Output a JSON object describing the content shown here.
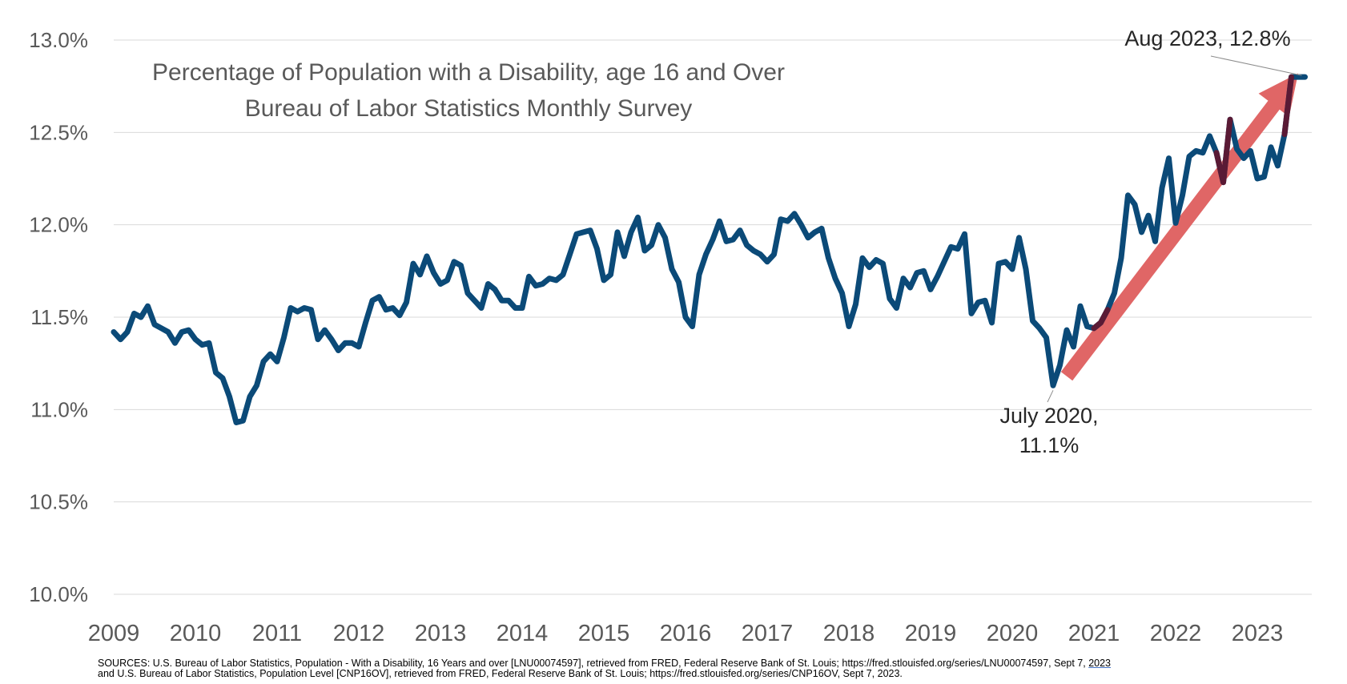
{
  "chart_data": {
    "type": "line",
    "title": "Percentage of Population with a Disability, age 16 and Over",
    "subtitle": "Bureau of Labor Statistics Monthly Survey",
    "xlabel": "",
    "ylabel": "",
    "ylim": [
      10.0,
      13.0
    ],
    "y_ticks": [
      "10.0%",
      "10.5%",
      "11.0%",
      "11.5%",
      "12.0%",
      "12.5%",
      "13.0%"
    ],
    "x_ticks": [
      "2009",
      "2010",
      "2011",
      "2012",
      "2013",
      "2014",
      "2015",
      "2016",
      "2017",
      "2018",
      "2019",
      "2020",
      "2021",
      "2022",
      "2023"
    ],
    "grid": "horizontal",
    "series": [
      {
        "name": "",
        "color": "#0b4a78",
        "start": "2009-01",
        "frequency": "monthly",
        "values": [
          11.42,
          11.38,
          11.42,
          11.52,
          11.5,
          11.56,
          11.46,
          11.44,
          11.42,
          11.36,
          11.42,
          11.43,
          11.38,
          11.35,
          11.36,
          11.2,
          11.17,
          11.07,
          10.93,
          10.94,
          11.07,
          11.13,
          11.26,
          11.3,
          11.26,
          11.39,
          11.55,
          11.53,
          11.55,
          11.54,
          11.38,
          11.43,
          11.38,
          11.32,
          11.36,
          11.36,
          11.34,
          11.47,
          11.59,
          11.61,
          11.54,
          11.55,
          11.51,
          11.58,
          11.79,
          11.73,
          11.83,
          11.74,
          11.68,
          11.7,
          11.8,
          11.78,
          11.63,
          11.59,
          11.55,
          11.68,
          11.65,
          11.59,
          11.59,
          11.55,
          11.55,
          11.72,
          11.67,
          11.68,
          11.71,
          11.7,
          11.73,
          11.84,
          11.95,
          11.96,
          11.97,
          11.87,
          11.7,
          11.73,
          11.96,
          11.83,
          11.96,
          12.04,
          11.86,
          11.89,
          12.0,
          11.93,
          11.76,
          11.69,
          11.5,
          11.45,
          11.73,
          11.84,
          11.92,
          12.02,
          11.91,
          11.92,
          11.97,
          11.89,
          11.86,
          11.84,
          11.8,
          11.84,
          12.03,
          12.02,
          12.06,
          12.0,
          11.93,
          11.96,
          11.98,
          11.82,
          11.71,
          11.63,
          11.45,
          11.57,
          11.82,
          11.77,
          11.81,
          11.79,
          11.6,
          11.55,
          11.71,
          11.66,
          11.74,
          11.75,
          11.65,
          11.72,
          11.8,
          11.88,
          11.87,
          11.95,
          11.52,
          11.58,
          11.59,
          11.47,
          11.79,
          11.8,
          11.76,
          11.93,
          11.76,
          11.48,
          11.44,
          11.39,
          11.13,
          11.24,
          11.43,
          11.34,
          11.56,
          11.45,
          11.44,
          11.47,
          11.54,
          11.63,
          11.82,
          12.16,
          12.11,
          11.96,
          12.05,
          11.91,
          12.2,
          12.36,
          12.01,
          12.16,
          12.37,
          12.4,
          12.39,
          12.48,
          12.39,
          12.23,
          12.57,
          12.41,
          12.36,
          12.4,
          12.25,
          12.26,
          12.42,
          12.32,
          12.49,
          12.8,
          12.8,
          12.8
        ]
      }
    ],
    "trend_arrow": {
      "from": [
        "2020-09",
        11.18
      ],
      "to": [
        "2023-07",
        12.82
      ],
      "color": "#e06666"
    },
    "highlight_segments": [
      {
        "from": "2021-01",
        "to": "2021-03",
        "color": "#5a1a35"
      },
      {
        "from": "2022-07",
        "to": "2022-09",
        "color": "#5a1a35"
      },
      {
        "from": "2023-05",
        "to": "2023-06",
        "color": "#5a1a35"
      }
    ],
    "annotations": [
      {
        "text": "Aug 2023, 12.8%",
        "point": [
          "2023-08",
          12.8
        ]
      },
      {
        "text_lines": [
          "July 2020,",
          "11.1%"
        ],
        "point": [
          "2020-07",
          11.13
        ]
      }
    ]
  },
  "source": {
    "line1": "SOURCES: U.S. Bureau of Labor Statistics, Population - With a Disability, 16 Years and over [LNU00074597], retrieved from FRED, Federal Reserve Bank of St. Louis; https://fred.stlouisfed.org/series/LNU00074597, Sept 7, ",
    "line1_tail": "2023",
    "line2": "and U.S. Bureau of Labor Statistics, Population Level [CNP16OV], retrieved from FRED, Federal Reserve Bank of St. Louis; https://fred.stlouisfed.org/series/CNP16OV, Sept 7, 2023."
  }
}
